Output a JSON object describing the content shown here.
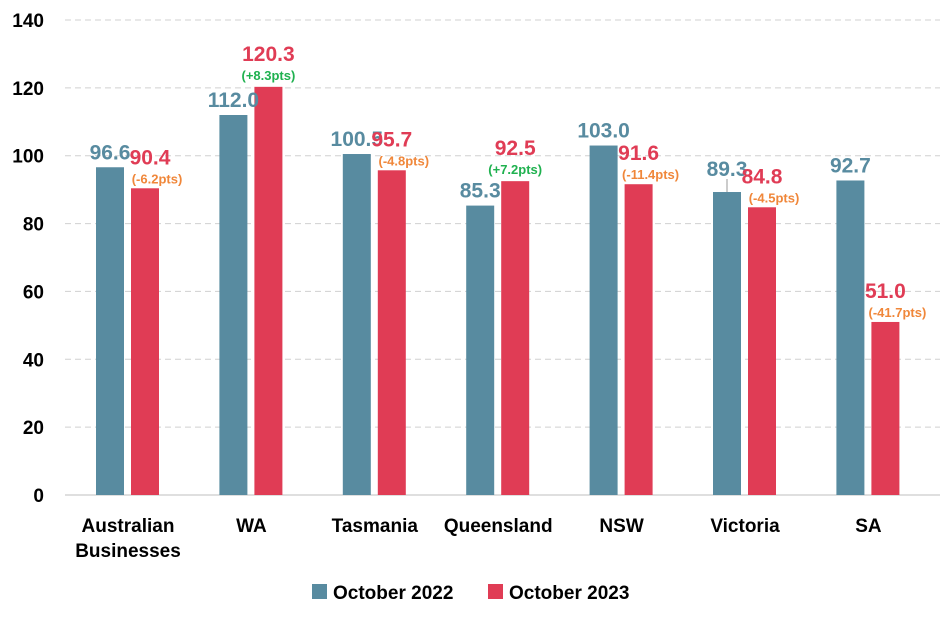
{
  "chart_data": {
    "type": "bar",
    "title": "",
    "xlabel": "",
    "ylabel": "",
    "ylim": [
      0,
      140
    ],
    "yticks": [
      "0",
      "20",
      "40",
      "60",
      "80",
      "100",
      "120",
      "140"
    ],
    "grid": true,
    "legend_position": "bottom",
    "categories": [
      [
        "Australian",
        "Businesses"
      ],
      [
        "WA"
      ],
      [
        "Tasmania"
      ],
      [
        "Queensland"
      ],
      [
        "NSW"
      ],
      [
        "Victoria"
      ],
      [
        "SA"
      ]
    ],
    "series": [
      {
        "name": "October 2022",
        "color": "#588ba0",
        "values": [
          96.6,
          112.0,
          100.5,
          85.3,
          103.0,
          89.3,
          92.7
        ],
        "labels": [
          "96.6",
          "112.0",
          "100.5",
          "85.3",
          "103.0",
          "89.3",
          "92.7"
        ]
      },
      {
        "name": "October 2023",
        "color": "#e03c55",
        "values": [
          90.4,
          120.3,
          95.7,
          92.5,
          91.6,
          84.8,
          51.0
        ],
        "labels": [
          "90.4",
          "120.3",
          "95.7",
          "92.5",
          "91.6",
          "84.8",
          "51.0"
        ]
      }
    ],
    "changes": [
      "(-6.2pts)",
      "(+8.3pts)",
      "(-4.8pts)",
      "(+7.2pts)",
      "(-11.4pts)",
      "(-4.5pts)",
      "(-41.7pts)"
    ],
    "change_colors": {
      "positive": "#1fb14f",
      "negative": "#f0873a"
    }
  }
}
